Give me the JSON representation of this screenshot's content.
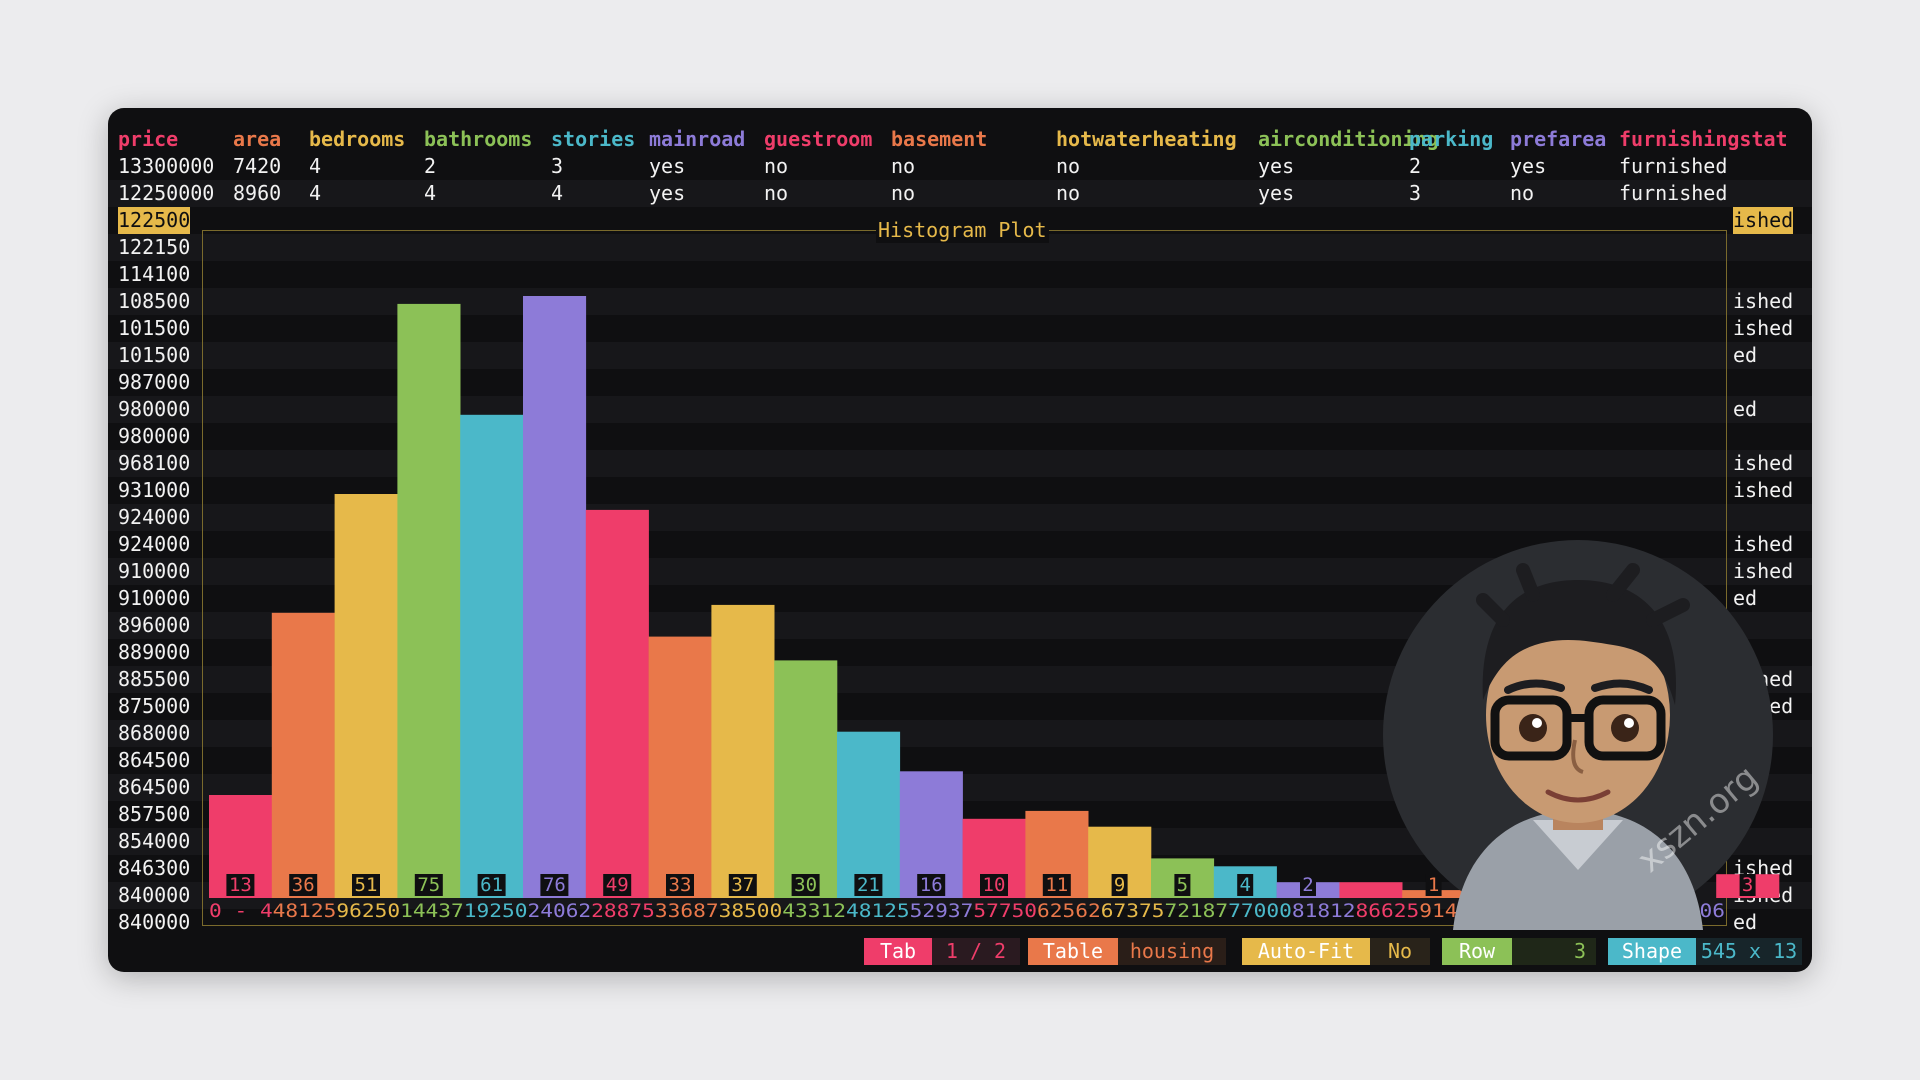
{
  "table": {
    "columns": [
      "price",
      "area",
      "bedrooms",
      "bathrooms",
      "stories",
      "mainroad",
      "guestroom",
      "basement",
      "hotwaterheating",
      "airconditioning",
      "parking",
      "prefarea",
      "furnishingstat"
    ],
    "column_colors": [
      "#ef3d6a",
      "#e9784a",
      "#e6b94a",
      "#8cc157",
      "#4bb8c9",
      "#8d7bd8",
      "#ef3d6a",
      "#e9784a",
      "#e6b94a",
      "#8cc157",
      "#4bb8c9",
      "#8d7bd8",
      "#ef3d6a"
    ],
    "rows": [
      [
        "13300000",
        "7420",
        "4",
        "2",
        "3",
        "yes",
        "no",
        "no",
        "no",
        "yes",
        "2",
        "yes",
        "furnished"
      ],
      [
        "12250000",
        "8960",
        "4",
        "4",
        "4",
        "yes",
        "no",
        "no",
        "no",
        "yes",
        "3",
        "no",
        "furnished"
      ]
    ],
    "price_column": [
      "122500",
      "122150",
      "114100",
      "108500",
      "101500",
      "101500",
      "987000",
      "980000",
      "980000",
      "968100",
      "931000",
      "924000",
      "924000",
      "910000",
      "910000",
      "896000",
      "889000",
      "885500",
      "875000",
      "868000",
      "864500",
      "864500",
      "857500",
      "854000",
      "846300",
      "840000",
      "840000"
    ],
    "right_column": [
      "ished",
      "",
      "",
      "ished",
      "ished",
      "ed",
      "",
      "ed",
      "",
      "ished",
      "ished",
      "",
      "ished",
      "ished",
      "ed",
      "",
      "",
      "ished",
      "ished",
      "ed",
      "",
      "",
      "",
      "",
      "ished",
      "ished",
      "ed"
    ]
  },
  "plot": {
    "title": "Histogram Plot"
  },
  "chart_data": {
    "type": "bar",
    "title": "Histogram Plot",
    "values": [
      13,
      36,
      51,
      75,
      61,
      76,
      49,
      33,
      37,
      30,
      21,
      16,
      10,
      11,
      9,
      5,
      4,
      2,
      2,
      1,
      1,
      0,
      1,
      0,
      3
    ],
    "value_labels": [
      "13",
      "36",
      "51",
      "75",
      "61",
      "76",
      "49",
      "33",
      "37",
      "30",
      "21",
      "16",
      "10",
      "11",
      "9",
      "5",
      "4",
      "2",
      "",
      "1",
      "",
      "",
      "1",
      "",
      "3"
    ],
    "bar_colors": [
      "#ef3d6a",
      "#e9784a",
      "#e6b94a",
      "#8cc157",
      "#4bb8c9",
      "#8d7bd8"
    ],
    "x_axis_text": "0 - 4481259625014437192502406228875336873850043312481255293757750625626737572187770008181286625914379625010106105871106",
    "ylim": [
      0,
      76
    ]
  },
  "statusbar": {
    "tab_label": "Tab",
    "tab_value": "1 / 2",
    "table_label": "Table",
    "table_value": "housing",
    "autofit_label": "Auto-Fit",
    "autofit_value": "No",
    "row_label": "Row",
    "row_value": "3",
    "shape_label": "Shape",
    "shape_value": "545 x 13"
  },
  "watermark": {
    "text": "xszn.org"
  },
  "colors": {
    "red": "#ef3d6a",
    "orange": "#e9784a",
    "yellow": "#e6b94a",
    "green": "#8cc157",
    "cyan": "#4bb8c9",
    "purple": "#8d7bd8",
    "background": "#0f0f11"
  }
}
